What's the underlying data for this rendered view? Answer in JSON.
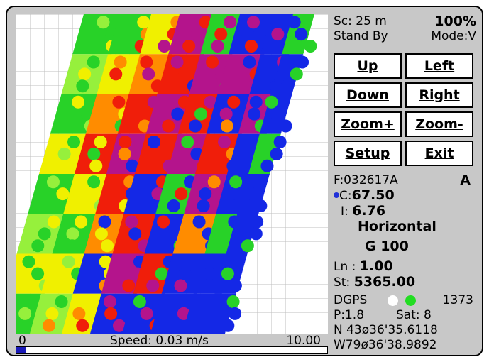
{
  "scale_bar": {
    "min": "0",
    "speed": "Speed: 0.03 m/s",
    "max": "10.00",
    "progress": 0.03
  },
  "header": {
    "scale": "Sc:  25 m",
    "zoom": "100%",
    "state": "Stand By",
    "mode": "Mode:V"
  },
  "buttons": {
    "up": "Up",
    "left": "Left",
    "down": "Down",
    "right": "Right",
    "zoom_in": "Zoom+",
    "zoom_out": "Zoom-",
    "setup": "Setup",
    "exit": "Exit"
  },
  "info": {
    "file": "F:032617A",
    "flag": "A",
    "c_label": "C:",
    "c_value": "67.50",
    "i_label": "I:",
    "i_value": "6.76",
    "orientation": "Horizontal",
    "g": "G 100",
    "ln_label": "Ln :",
    "ln_value": "1.00",
    "st_label": "St:",
    "st_value": "5365.00"
  },
  "gps": {
    "label": "DGPS",
    "count": "1373",
    "p": "P:1.8",
    "sat": "Sat:  8",
    "lat": "N 43ø36'35.6118",
    "lon": "W79ø36'38.9892",
    "colors": {
      "c_dot": "#2030d8",
      "gps_dot_1": "#ffffff",
      "gps_dot_2": "#22dd22"
    }
  },
  "colors": {
    "blue": "#1428e6",
    "magenta": "#b4148c",
    "red": "#f01e0a",
    "orange": "#ff8c00",
    "yellow": "#f0f000",
    "green": "#28d228",
    "lime": "#96f03c"
  }
}
